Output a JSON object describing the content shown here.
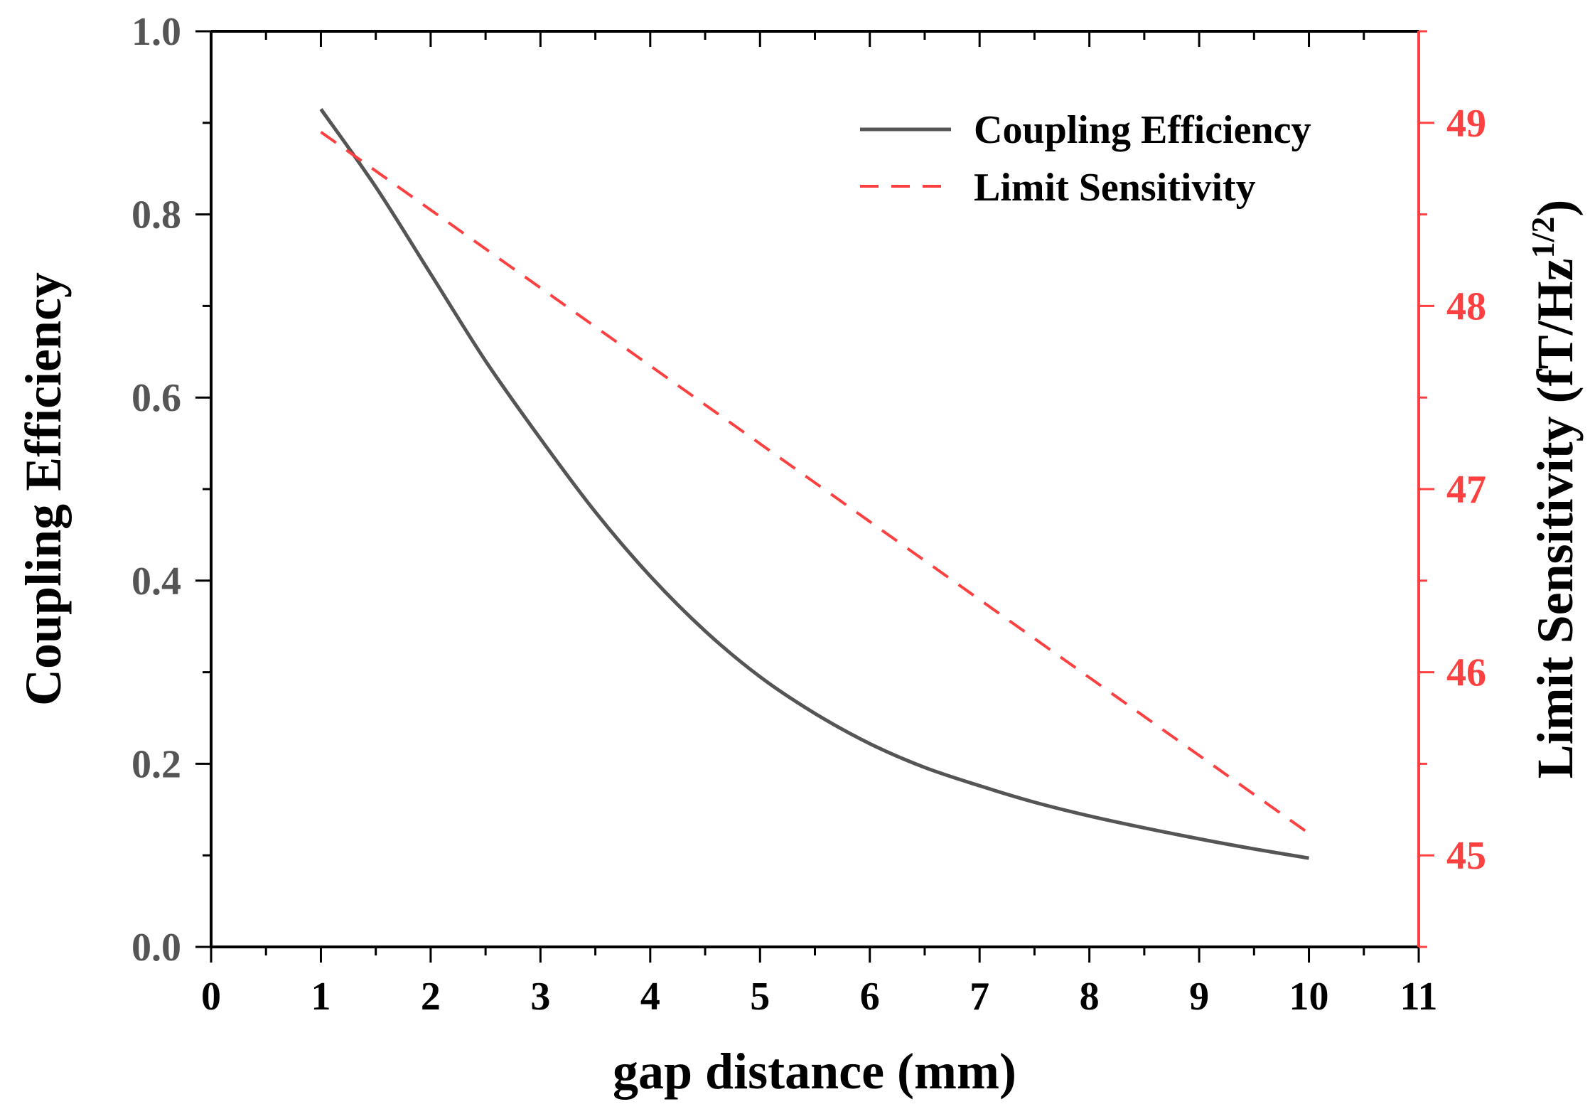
{
  "chart_data": {
    "type": "line",
    "title": "",
    "xlabel": "gap distance (mm)",
    "ylabel_left": "Coupling Efficiency",
    "ylabel_right": {
      "text": "Limit Sensitivity (fT/Hz",
      "superscript": "1/2",
      "closing": ")"
    },
    "xlim": [
      0,
      11
    ],
    "ylim_left": [
      0.0,
      1.0
    ],
    "ylim_right": [
      44.5,
      49.5
    ],
    "x_ticks": [
      "0",
      "1",
      "2",
      "3",
      "4",
      "5",
      "6",
      "7",
      "8",
      "9",
      "10",
      "11"
    ],
    "y_left_ticks": [
      "0.0",
      "0.2",
      "0.4",
      "0.6",
      "0.8",
      "1.0"
    ],
    "y_right_ticks": [
      "45",
      "46",
      "47",
      "48",
      "49"
    ],
    "colors": {
      "coupling": "#555555",
      "sensitivity": "#ff4040",
      "axis": "#000000",
      "left_ticks": "#555555",
      "right_axis": "#ff4040"
    },
    "legend_position": "top-right",
    "series": [
      {
        "name": "Coupling Efficiency",
        "axis": "left",
        "style": "solid",
        "x": [
          1.0,
          1.5,
          2.0,
          2.5,
          3.0,
          3.5,
          4.0,
          4.5,
          5.0,
          5.5,
          6.0,
          6.5,
          7.0,
          7.5,
          8.0,
          8.5,
          9.0,
          9.5,
          10.0
        ],
        "y": [
          0.915,
          0.83,
          0.735,
          0.64,
          0.555,
          0.475,
          0.405,
          0.345,
          0.295,
          0.255,
          0.222,
          0.196,
          0.176,
          0.158,
          0.143,
          0.13,
          0.118,
          0.107,
          0.097
        ]
      },
      {
        "name": "Limit Sensitivity",
        "axis": "right",
        "style": "dashed",
        "x": [
          1.0,
          10.0
        ],
        "y": [
          48.95,
          45.12
        ]
      }
    ]
  }
}
